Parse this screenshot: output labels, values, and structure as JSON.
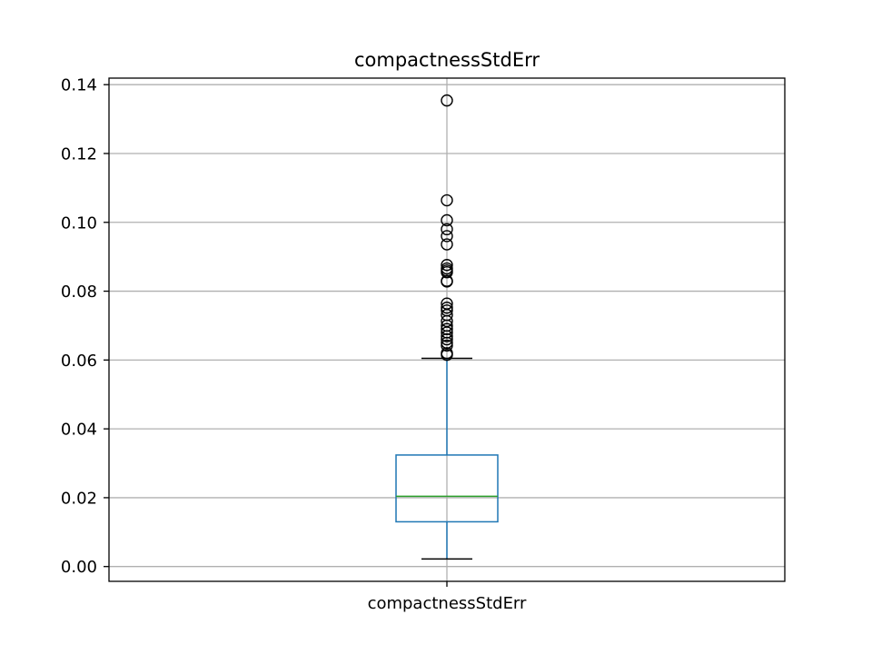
{
  "chart_data": {
    "type": "box",
    "title": "compactnessStdErr",
    "categories": [
      "compactnessStdErr"
    ],
    "ylim": [
      -0.0043,
      0.1419
    ],
    "yticks": [
      0.0,
      0.02,
      0.04,
      0.06,
      0.08,
      0.1,
      0.12,
      0.14
    ],
    "ytick_labels": [
      "0.00",
      "0.02",
      "0.04",
      "0.06",
      "0.08",
      "0.10",
      "0.12",
      "0.14"
    ],
    "grid": true,
    "series": [
      {
        "whisker_low": 0.0022,
        "q1": 0.013,
        "median": 0.0204,
        "q3": 0.0324,
        "whisker_high": 0.0605,
        "outliers": [
          0.1354,
          0.1064,
          0.1006,
          0.098,
          0.096,
          0.0936,
          0.0876,
          0.0866,
          0.086,
          0.0855,
          0.083,
          0.0828,
          0.0764,
          0.0752,
          0.0744,
          0.0731,
          0.0713,
          0.07,
          0.069,
          0.068,
          0.0669,
          0.066,
          0.065,
          0.0642,
          0.062,
          0.0615
        ]
      }
    ],
    "colors": {
      "box": "#1f77b4",
      "median": "#2ca02c",
      "cap": "#000000",
      "flier": "#000000",
      "grid": "#b0b0b0",
      "axes": "#000000"
    }
  }
}
